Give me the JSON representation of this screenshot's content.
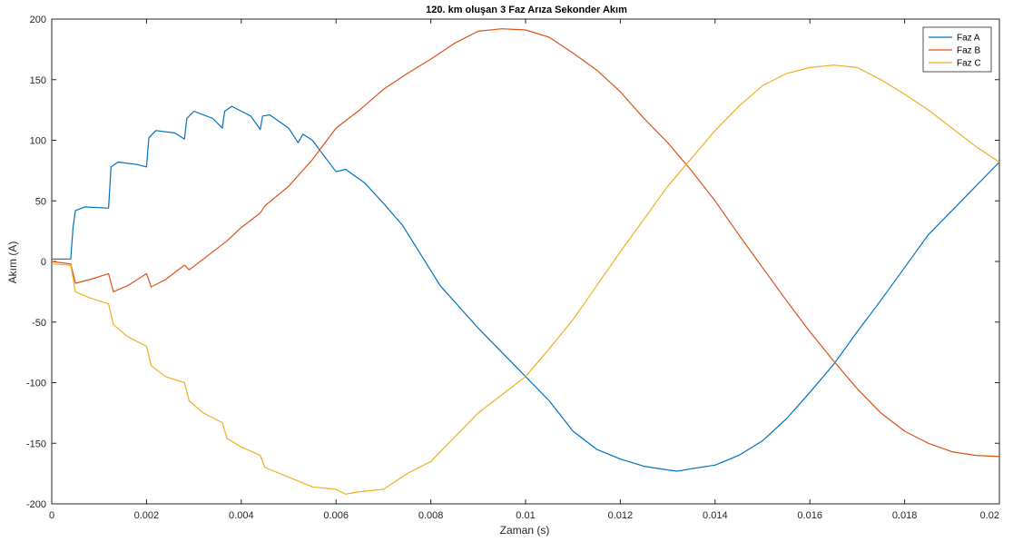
{
  "chart_data": {
    "type": "line",
    "title": "120. km oluşan 3 Faz Arıza Sekonder Akım",
    "xlabel": "Zaman (s)",
    "ylabel": "Akım (A)",
    "xlim": [
      0,
      0.02
    ],
    "ylim": [
      -200,
      200
    ],
    "xticks": [
      "0",
      "0.002",
      "0.004",
      "0.006",
      "0.008",
      "0.01",
      "0.012",
      "0.014",
      "0.016",
      "0.018",
      "0.02"
    ],
    "yticks": [
      "-200",
      "-150",
      "-100",
      "-50",
      "0",
      "50",
      "100",
      "150",
      "200"
    ],
    "grid": false,
    "legend_position": "top-right",
    "series": [
      {
        "name": "Faz A",
        "color": "#0072BD",
        "x": [
          0,
          0.0004,
          0.00045,
          0.0005,
          0.0007,
          0.0012,
          0.00125,
          0.0014,
          0.0018,
          0.002,
          0.00205,
          0.0022,
          0.0026,
          0.0028,
          0.00285,
          0.003,
          0.0034,
          0.0036,
          0.00365,
          0.0038,
          0.0042,
          0.0044,
          0.00445,
          0.0046,
          0.005,
          0.0052,
          0.0053,
          0.0055,
          0.006,
          0.0062,
          0.0066,
          0.007,
          0.0074,
          0.0078,
          0.0082,
          0.009,
          0.0095,
          0.01,
          0.0105,
          0.011,
          0.0115,
          0.012,
          0.0125,
          0.013,
          0.0132,
          0.0135,
          0.014,
          0.0145,
          0.015,
          0.0155,
          0.016,
          0.0165,
          0.017,
          0.0175,
          0.018,
          0.0185,
          0.019,
          0.0195,
          0.02
        ],
        "y": [
          2,
          2,
          28,
          42,
          45,
          44,
          78,
          82,
          80,
          78,
          102,
          108,
          106,
          101,
          118,
          124,
          118,
          110,
          124,
          128,
          120,
          109,
          120,
          121,
          110,
          98,
          105,
          100,
          74,
          76,
          65,
          48,
          30,
          5,
          -20,
          -55,
          -75,
          -95,
          -115,
          -140,
          -155,
          -163,
          -169,
          -172,
          -173,
          -171,
          -168,
          -160,
          -148,
          -130,
          -108,
          -85,
          -58,
          -32,
          -5,
          22,
          42,
          62,
          82
        ]
      },
      {
        "name": "Faz B",
        "color": "#D95319",
        "x": [
          0,
          0.0004,
          0.0005,
          0.0008,
          0.0012,
          0.0013,
          0.0016,
          0.002,
          0.0021,
          0.0024,
          0.0028,
          0.0029,
          0.0032,
          0.0036,
          0.0037,
          0.004,
          0.0044,
          0.0045,
          0.005,
          0.0055,
          0.006,
          0.0065,
          0.007,
          0.0075,
          0.008,
          0.0085,
          0.009,
          0.0095,
          0.01,
          0.0105,
          0.011,
          0.0115,
          0.012,
          0.0125,
          0.013,
          0.0135,
          0.014,
          0.0145,
          0.015,
          0.0155,
          0.016,
          0.0165,
          0.017,
          0.0175,
          0.018,
          0.0185,
          0.019,
          0.0195,
          0.02
        ],
        "y": [
          0,
          -2,
          -18,
          -15,
          -10,
          -25,
          -20,
          -10,
          -21,
          -15,
          -3,
          -7,
          2,
          14,
          17,
          28,
          40,
          46,
          62,
          84,
          110,
          125,
          142,
          155,
          167,
          180,
          190,
          192,
          191,
          185,
          172,
          158,
          140,
          118,
          98,
          75,
          50,
          22,
          -5,
          -32,
          -58,
          -82,
          -105,
          -125,
          -140,
          -150,
          -157,
          -160,
          -161
        ]
      },
      {
        "name": "Faz C",
        "color": "#EDB120",
        "x": [
          0,
          0.0004,
          0.0005,
          0.0008,
          0.0012,
          0.0013,
          0.0016,
          0.002,
          0.0021,
          0.0024,
          0.0028,
          0.0029,
          0.0032,
          0.0036,
          0.0037,
          0.004,
          0.0044,
          0.0045,
          0.005,
          0.0055,
          0.006,
          0.0062,
          0.0065,
          0.007,
          0.0075,
          0.008,
          0.0085,
          0.009,
          0.0095,
          0.01,
          0.0105,
          0.011,
          0.0115,
          0.012,
          0.0125,
          0.013,
          0.0135,
          0.014,
          0.0145,
          0.015,
          0.0155,
          0.016,
          0.0165,
          0.017,
          0.0175,
          0.018,
          0.0185,
          0.019,
          0.0195,
          0.02
        ],
        "y": [
          -2,
          -3,
          -25,
          -30,
          -35,
          -52,
          -62,
          -70,
          -86,
          -95,
          -100,
          -115,
          -125,
          -133,
          -146,
          -153,
          -160,
          -170,
          -178,
          -186,
          -188,
          -192,
          -190,
          -188,
          -175,
          -165,
          -145,
          -125,
          -110,
          -95,
          -72,
          -48,
          -20,
          8,
          35,
          62,
          85,
          108,
          128,
          145,
          155,
          160,
          162,
          160,
          150,
          138,
          125,
          110,
          95,
          82
        ]
      }
    ]
  }
}
